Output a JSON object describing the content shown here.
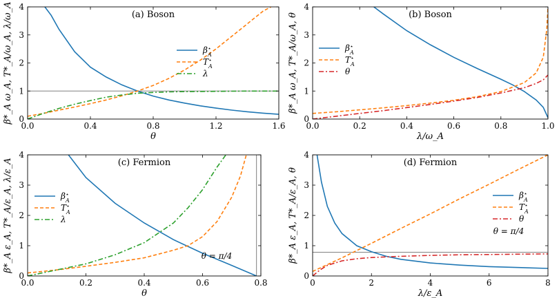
{
  "palette": {
    "blue": "#1f77b4",
    "orange": "#ff7f0e",
    "green": "#2ca02c",
    "red": "#d62728",
    "gray": "#808080"
  },
  "chart_data": [
    {
      "id": "a",
      "type": "line",
      "title": "(a) Boson",
      "xlabel": "θ",
      "ylabel": "β*_A ω_A, T*_A/ω_A, λ/ω_A",
      "xlim": [
        0,
        1.6
      ],
      "ylim": [
        0,
        4
      ],
      "xticks": [
        "0.0",
        "0.4",
        "0.8",
        "1.2",
        "1.6"
      ],
      "xtick_values": [
        0,
        0.4,
        0.8,
        1.2,
        1.6
      ],
      "yticks": [
        "0",
        "1",
        "2",
        "3",
        "4"
      ],
      "ytick_values": [
        0,
        1,
        2,
        3,
        4
      ],
      "legend_position": "center-right",
      "hline": 1,
      "annotation": "",
      "series": [
        {
          "name": "β*_A",
          "label_base": "β",
          "label_sup": "⋆",
          "label_sub": "A",
          "color": "blue",
          "dash": "",
          "x": [
            0.11,
            0.15,
            0.2,
            0.3,
            0.4,
            0.5,
            0.6,
            0.7,
            0.8,
            0.9,
            1.0,
            1.1,
            1.2,
            1.3,
            1.4,
            1.5,
            1.6
          ],
          "y": [
            4.0,
            3.7,
            3.2,
            2.4,
            1.85,
            1.5,
            1.22,
            1.0,
            0.82,
            0.68,
            0.57,
            0.47,
            0.39,
            0.32,
            0.26,
            0.21,
            0.17
          ]
        },
        {
          "name": "T*_A",
          "label_base": "T",
          "label_sup": "⋆",
          "label_sub": "A",
          "color": "orange",
          "dash": "5,3",
          "x": [
            0,
            0.1,
            0.2,
            0.3,
            0.4,
            0.5,
            0.6,
            0.7,
            0.8,
            0.9,
            1.0,
            1.1,
            1.2,
            1.3,
            1.4,
            1.5,
            1.55
          ],
          "y": [
            0.1,
            0.2,
            0.32,
            0.43,
            0.55,
            0.68,
            0.83,
            1.0,
            1.2,
            1.45,
            1.75,
            2.1,
            2.5,
            2.95,
            3.4,
            3.85,
            4.0
          ]
        },
        {
          "name": "λ",
          "label_base": "λ",
          "label_sup": "",
          "label_sub": "",
          "color": "green",
          "dash": "7,3,2,3",
          "x": [
            0,
            0.1,
            0.2,
            0.3,
            0.4,
            0.5,
            0.6,
            0.7,
            0.8,
            0.9,
            1.0,
            1.2,
            1.4,
            1.6
          ],
          "y": [
            0,
            0.2,
            0.38,
            0.53,
            0.66,
            0.78,
            0.86,
            0.92,
            0.95,
            0.97,
            0.98,
            0.99,
            1.0,
            1.0
          ]
        }
      ]
    },
    {
      "id": "b",
      "type": "line",
      "title": "(b) Boson",
      "xlabel": "λ/ω_A",
      "ylabel": "β*_A ω_A, T*_A/ω_A, θ",
      "xlim": [
        0,
        1.0
      ],
      "ylim": [
        0,
        4
      ],
      "xticks": [
        "0.0",
        "0.2",
        "0.4",
        "0.6",
        "0.8",
        "1.0"
      ],
      "xtick_values": [
        0,
        0.2,
        0.4,
        0.6,
        0.8,
        1.0
      ],
      "yticks": [
        "0",
        "1",
        "2",
        "3",
        "4"
      ],
      "ytick_values": [
        0,
        1,
        2,
        3,
        4
      ],
      "legend_position": "upper-left",
      "hline": null,
      "annotation": "",
      "series": [
        {
          "name": "β*_A",
          "label_base": "β",
          "label_sup": "⋆",
          "label_sub": "A",
          "color": "blue",
          "dash": "",
          "x": [
            0.26,
            0.3,
            0.4,
            0.5,
            0.6,
            0.7,
            0.8,
            0.85,
            0.9,
            0.95,
            0.98,
            1.0
          ],
          "y": [
            4.0,
            3.75,
            3.15,
            2.65,
            2.2,
            1.8,
            1.42,
            1.22,
            0.98,
            0.68,
            0.42,
            0.05
          ]
        },
        {
          "name": "T*_A",
          "label_base": "T",
          "label_sup": "⋆",
          "label_sub": "A",
          "color": "orange",
          "dash": "5,3",
          "x": [
            0,
            0.1,
            0.2,
            0.3,
            0.4,
            0.5,
            0.6,
            0.7,
            0.8,
            0.9,
            0.95,
            0.98,
            0.995,
            1.0
          ],
          "y": [
            0.2,
            0.26,
            0.33,
            0.4,
            0.48,
            0.57,
            0.67,
            0.8,
            0.98,
            1.3,
            1.65,
            2.2,
            3.2,
            4.0
          ]
        },
        {
          "name": "θ",
          "label_base": "θ",
          "label_sup": "",
          "label_sub": "",
          "color": "red",
          "dash": "7,3,2,3",
          "x": [
            0,
            0.1,
            0.2,
            0.3,
            0.4,
            0.5,
            0.6,
            0.7,
            0.8,
            0.9,
            0.95,
            0.98,
            1.0
          ],
          "y": [
            0,
            0.1,
            0.2,
            0.3,
            0.41,
            0.52,
            0.64,
            0.77,
            0.93,
            1.12,
            1.27,
            1.4,
            1.57
          ]
        }
      ]
    },
    {
      "id": "c",
      "type": "line",
      "title": "(c) Fermion",
      "xlabel": "θ",
      "ylabel": "β*_A ε_A, T*_A/ε_A, λ/ε_A",
      "xlim": [
        0,
        0.8
      ],
      "ylim": [
        0,
        4
      ],
      "xticks": [
        "0.0",
        "0.2",
        "0.4",
        "0.6",
        "0.8"
      ],
      "xtick_values": [
        0,
        0.2,
        0.4,
        0.6,
        0.8
      ],
      "yticks": [
        "0",
        "1",
        "2",
        "3",
        "4"
      ],
      "ytick_values": [
        0,
        1,
        2,
        3,
        4
      ],
      "legend_position": "center-left",
      "hline": null,
      "vline": 0.785,
      "annotation": "θ = π/4",
      "series": [
        {
          "name": "β*_A",
          "label_base": "β",
          "label_sup": "⋆",
          "label_sub": "A",
          "color": "blue",
          "dash": "",
          "x": [
            0.14,
            0.2,
            0.3,
            0.4,
            0.5,
            0.6,
            0.7,
            0.785
          ],
          "y": [
            4.0,
            3.25,
            2.4,
            1.75,
            1.2,
            0.75,
            0.35,
            0.0
          ]
        },
        {
          "name": "T*_A",
          "label_base": "T",
          "label_sup": "⋆",
          "label_sub": "A",
          "color": "orange",
          "dash": "5,3",
          "x": [
            0,
            0.1,
            0.2,
            0.3,
            0.4,
            0.5,
            0.55,
            0.6,
            0.65,
            0.7,
            0.73,
            0.75
          ],
          "y": [
            0.1,
            0.2,
            0.32,
            0.45,
            0.6,
            0.85,
            1.0,
            1.3,
            1.8,
            2.6,
            3.3,
            4.0
          ]
        },
        {
          "name": "λ",
          "label_base": "λ",
          "label_sup": "",
          "label_sub": "",
          "color": "green",
          "dash": "7,3,2,3",
          "x": [
            0,
            0.1,
            0.2,
            0.3,
            0.4,
            0.5,
            0.55,
            0.6,
            0.65,
            0.68
          ],
          "y": [
            0.0,
            0.2,
            0.4,
            0.7,
            1.1,
            1.75,
            2.25,
            2.85,
            3.6,
            4.0
          ]
        }
      ]
    },
    {
      "id": "d",
      "type": "line",
      "title": "(d) Fermion",
      "xlabel": "λ/ε_A",
      "ylabel": "β*_A ε_A, T*_A/ε_A, θ",
      "xlim": [
        0,
        8
      ],
      "ylim": [
        0,
        4
      ],
      "xticks": [
        "0",
        "2",
        "4",
        "6",
        "8"
      ],
      "xtick_values": [
        0,
        2,
        4,
        6,
        8
      ],
      "yticks": [
        "0",
        "1",
        "2",
        "3",
        "4"
      ],
      "ytick_values": [
        0,
        1,
        2,
        3,
        4
      ],
      "legend_position": "center-right",
      "hline": 0.785,
      "annotation": "θ = π/4",
      "series": [
        {
          "name": "β*_A",
          "label_base": "β",
          "label_sup": "⋆",
          "label_sub": "A",
          "color": "blue",
          "dash": "",
          "x": [
            0.15,
            0.3,
            0.5,
            0.75,
            1.0,
            1.5,
            2.0,
            2.5,
            3.0,
            4.0,
            5.0,
            6.0,
            7.0,
            8.0
          ],
          "y": [
            4.0,
            3.1,
            2.3,
            1.75,
            1.4,
            1.0,
            0.8,
            0.65,
            0.55,
            0.43,
            0.36,
            0.31,
            0.28,
            0.25
          ]
        },
        {
          "name": "T*_A",
          "label_base": "T",
          "label_sup": "⋆",
          "label_sub": "A",
          "color": "orange",
          "dash": "5,3",
          "x": [
            0,
            1,
            2,
            3,
            4,
            5,
            6,
            7,
            8
          ],
          "y": [
            0.15,
            0.6,
            1.08,
            1.57,
            2.05,
            2.55,
            3.03,
            3.52,
            4.0
          ]
        },
        {
          "name": "θ",
          "label_base": "θ",
          "label_sup": "",
          "label_sub": "",
          "color": "red",
          "dash": "7,3,2,3",
          "x": [
            0,
            0.25,
            0.5,
            1.0,
            1.5,
            2.0,
            3.0,
            4.0,
            5.0,
            6.0,
            7.0,
            8.0
          ],
          "y": [
            0,
            0.2,
            0.35,
            0.5,
            0.57,
            0.61,
            0.65,
            0.68,
            0.7,
            0.71,
            0.72,
            0.73
          ]
        }
      ]
    }
  ]
}
